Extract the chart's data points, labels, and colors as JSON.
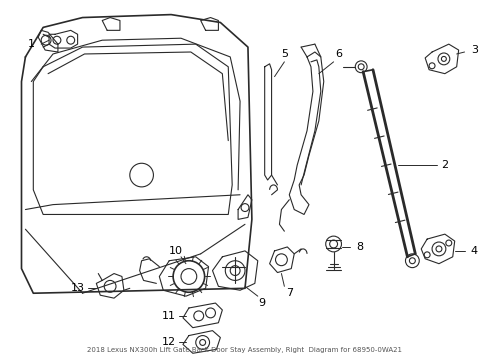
{
  "background_color": "#ffffff",
  "line_color": "#2a2a2a",
  "fig_width": 4.89,
  "fig_height": 3.6,
  "dpi": 100,
  "title_text": "2018 Lexus NX300h Lift Gate Back Door Stay Assembly, Right  Diagram for 68950-0WA21"
}
